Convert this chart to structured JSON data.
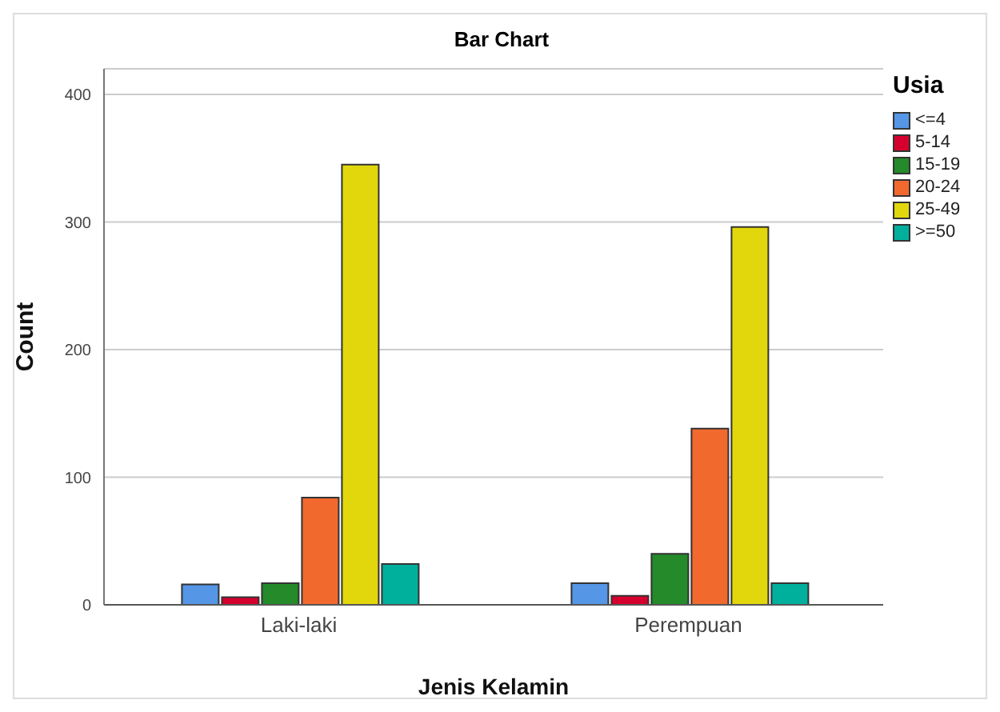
{
  "chart_data": {
    "type": "bar",
    "title": "Bar Chart",
    "xlabel": "Jenis Kelamin",
    "ylabel": "Count",
    "legend_title": "Usia",
    "categories": [
      "Laki-laki",
      "Perempuan"
    ],
    "series": [
      {
        "name": "<=4",
        "color": "#5596e6",
        "values": [
          16,
          17
        ]
      },
      {
        "name": "5-14",
        "color": "#d6002e",
        "values": [
          6,
          7
        ]
      },
      {
        "name": "15-19",
        "color": "#248a2a",
        "values": [
          17,
          40
        ]
      },
      {
        "name": "20-24",
        "color": "#f2692e",
        "values": [
          84,
          138
        ]
      },
      {
        "name": "25-49",
        "color": "#e2d70c",
        "values": [
          345,
          296
        ]
      },
      {
        "name": ">=50",
        "color": "#00b09d",
        "values": [
          32,
          17
        ]
      }
    ],
    "ylim": [
      0,
      420
    ],
    "yticks": [
      0,
      100,
      200,
      300,
      400
    ],
    "grid": "y",
    "legend": "top right"
  }
}
